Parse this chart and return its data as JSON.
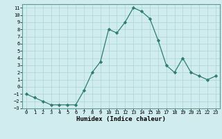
{
  "x": [
    0,
    1,
    2,
    3,
    4,
    5,
    6,
    7,
    8,
    9,
    10,
    11,
    12,
    13,
    14,
    15,
    16,
    17,
    18,
    19,
    20,
    21,
    22,
    23
  ],
  "y": [
    -1,
    -1.5,
    -2,
    -2.5,
    -2.5,
    -2.5,
    -2.5,
    -0.5,
    2,
    3.5,
    8,
    7.5,
    9,
    11,
    10.5,
    9.5,
    6.5,
    3,
    2,
    4,
    2,
    1.5,
    1,
    1.5
  ],
  "line_color": "#2e7d6e",
  "marker": "D",
  "marker_size": 2.2,
  "bg_color": "#d0ecee",
  "grid_color": "#a8d5d8",
  "xlabel": "Humidex (Indice chaleur)",
  "xlim": [
    -0.5,
    23.5
  ],
  "ylim": [
    -3,
    11.5
  ],
  "yticks": [
    -3,
    -2,
    -1,
    0,
    1,
    2,
    3,
    4,
    5,
    6,
    7,
    8,
    9,
    10,
    11
  ],
  "xticks": [
    0,
    1,
    2,
    3,
    4,
    5,
    6,
    7,
    8,
    9,
    10,
    11,
    12,
    13,
    14,
    15,
    16,
    17,
    18,
    19,
    20,
    21,
    22,
    23
  ]
}
